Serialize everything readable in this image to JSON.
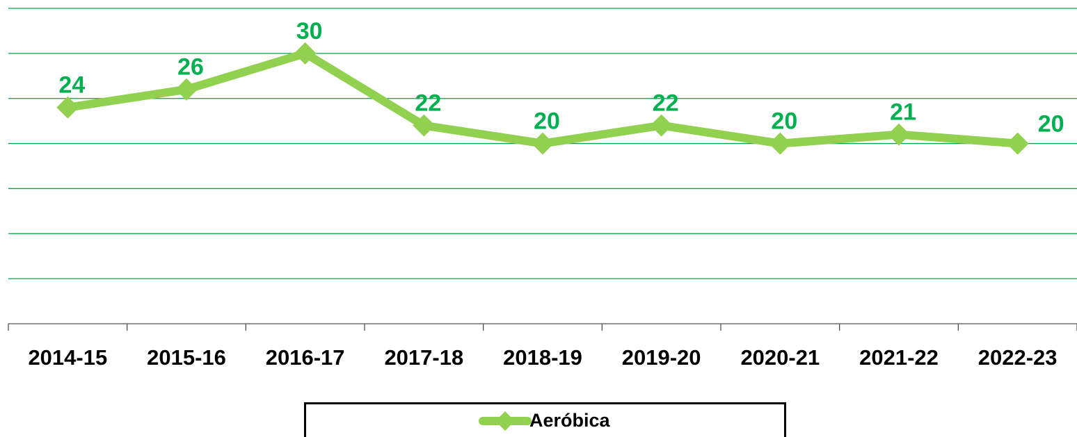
{
  "chart_data": {
    "type": "line",
    "categories": [
      "2014-15",
      "2015-16",
      "2016-17",
      "2017-18",
      "2018-19",
      "2019-20",
      "2020-21",
      "2021-22",
      "2022-23"
    ],
    "series": [
      {
        "name": "Aeróbica",
        "color": "#92d050",
        "values": [
          24,
          26,
          30,
          22,
          20,
          22,
          20,
          21,
          20
        ]
      }
    ],
    "label_color": "#00b050",
    "grid_color": "#00a443",
    "ylim": [
      0,
      35
    ],
    "yticks": [
      0,
      5,
      10,
      15,
      20,
      25,
      30,
      35
    ],
    "grid": true,
    "legend": "bottom"
  }
}
